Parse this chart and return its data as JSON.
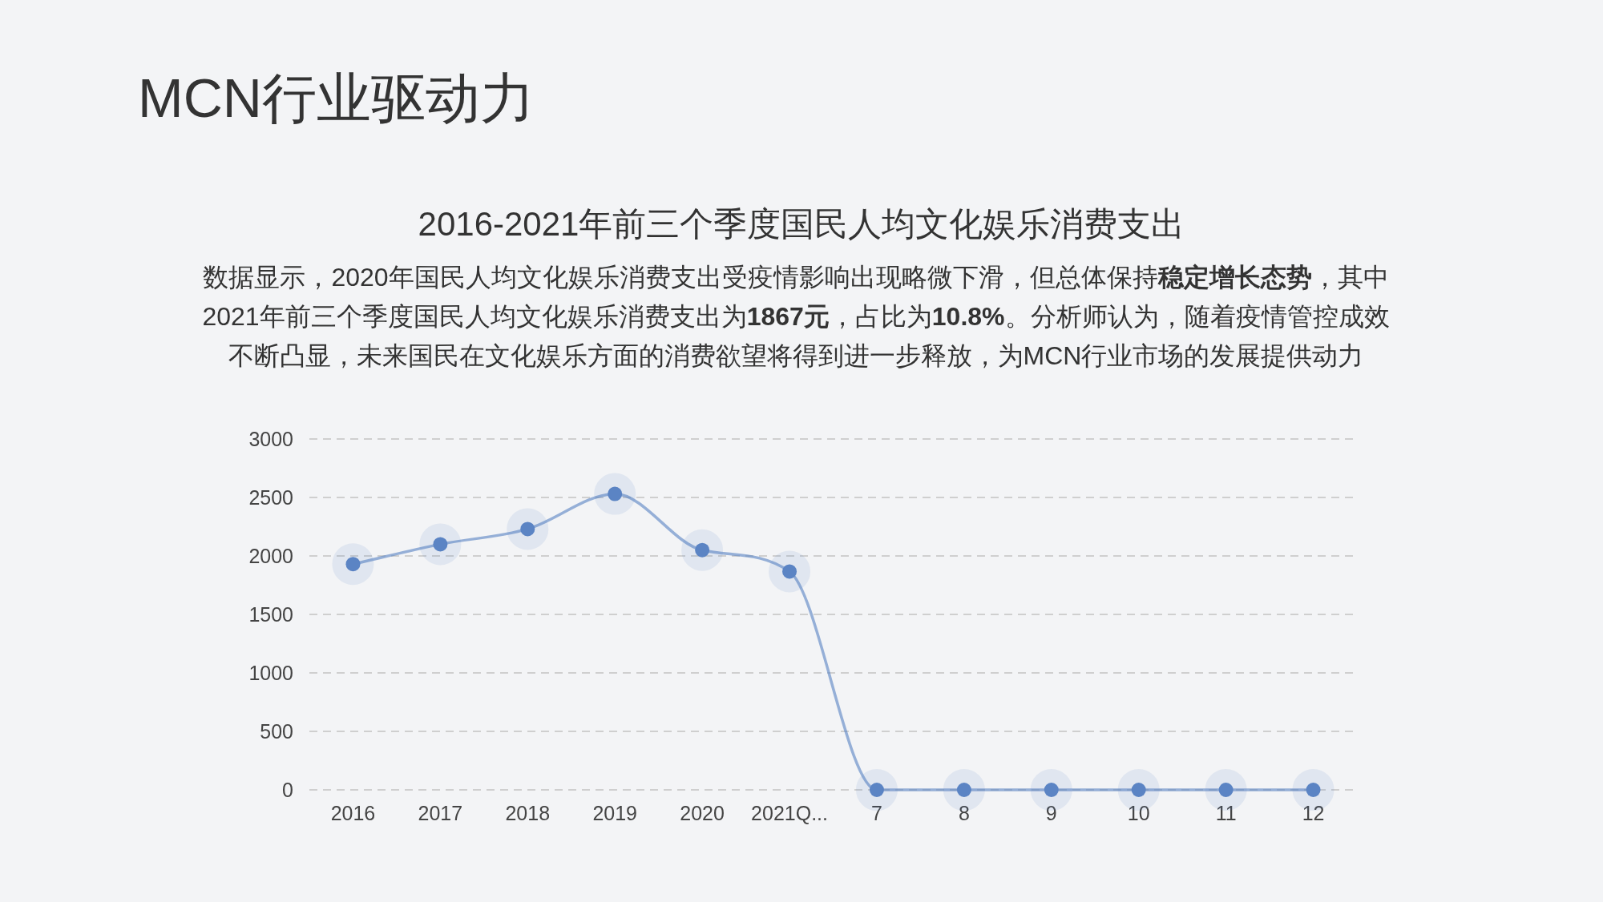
{
  "chart_data": {
    "type": "line",
    "title": "MCN行业驱动力",
    "subtitle": "2016-2021年前三个季度国民人均文化娱乐消费支出",
    "annotations": [
      "数据显示，2020年国民人均文化娱乐消费支出受疫情影响出现略微下滑，但总体保持**稳定增长态势**，其中2021年前三个季度国民人均文化娱乐消费支出为**1867元**，占比为**10.8%**。分析师认为，随着疫情管控成效不断凸显，未来国民在文化娱乐方面的消费欲望将得到进一步释放，为MCN行业市场的发展提供动力"
    ],
    "categories": [
      "2016",
      "2017",
      "2018",
      "2019",
      "2020",
      "2021Q...",
      "7",
      "8",
      "9",
      "10",
      "11",
      "12"
    ],
    "series": [
      {
        "color": "#5b84c4",
        "values": [
          1930,
          2100,
          2230,
          2530,
          2050,
          1867,
          0,
          0,
          0,
          0,
          0,
          0
        ]
      }
    ],
    "ylim": [
      0,
      3000
    ],
    "yticks": [
      0,
      500,
      1000,
      1500,
      2000,
      2500,
      3000
    ],
    "grid": "y",
    "marker": "circle",
    "line_style": "solid"
  }
}
